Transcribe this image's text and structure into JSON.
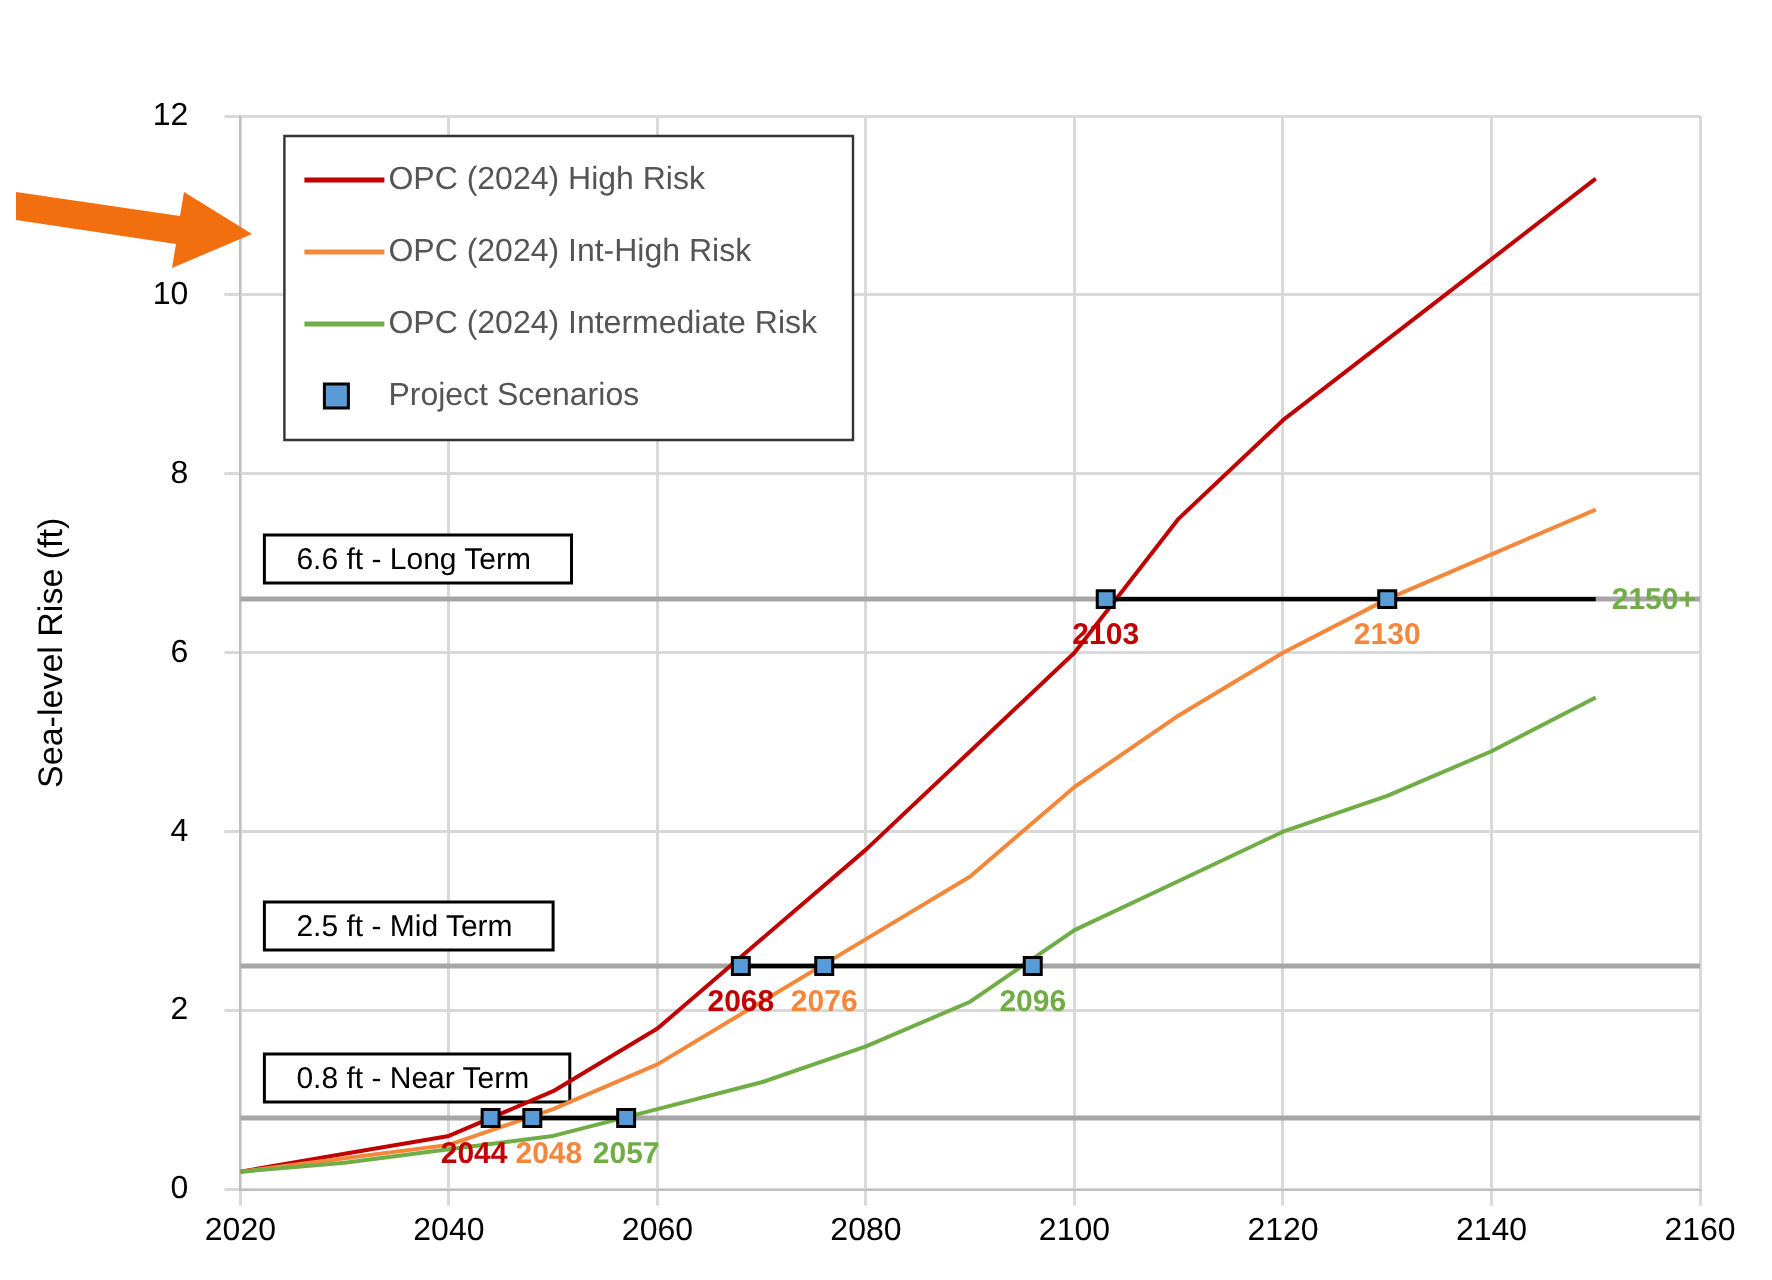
{
  "chart_data": {
    "type": "line",
    "ylabel": "Sea-level Rise (ft)",
    "xlim": [
      2020,
      2160
    ],
    "xticks": [
      2020,
      2040,
      2060,
      2080,
      2100,
      2120,
      2140,
      2160
    ],
    "ylim": [
      0,
      12
    ],
    "yticks": [
      0,
      2,
      4,
      6,
      8,
      10,
      12
    ],
    "grid": true,
    "legend": "top left",
    "series": [
      {
        "name": "OPC (2024) High Risk",
        "color": "#c00000",
        "x": [
          2020,
          2030,
          2040,
          2050,
          2060,
          2070,
          2080,
          2090,
          2100,
          2110,
          2120,
          2130,
          2140,
          2150
        ],
        "values": [
          0.2,
          0.4,
          0.6,
          1.1,
          1.8,
          2.8,
          3.8,
          4.9,
          6.0,
          7.5,
          8.6,
          9.5,
          10.4,
          11.3
        ]
      },
      {
        "name": "OPC (2024) Int-High Risk",
        "color": "#f4873a",
        "x": [
          2020,
          2030,
          2040,
          2050,
          2060,
          2070,
          2080,
          2090,
          2100,
          2110,
          2120,
          2130,
          2140,
          2150
        ],
        "values": [
          0.2,
          0.35,
          0.5,
          0.9,
          1.4,
          2.1,
          2.8,
          3.5,
          4.5,
          5.3,
          6.0,
          6.6,
          7.1,
          7.6
        ]
      },
      {
        "name": "OPC (2024) Intermediate Risk",
        "color": "#70ad47",
        "x": [
          2020,
          2030,
          2040,
          2050,
          2060,
          2070,
          2080,
          2090,
          2100,
          2110,
          2120,
          2130,
          2140,
          2150
        ],
        "values": [
          0.2,
          0.3,
          0.45,
          0.6,
          0.9,
          1.2,
          1.6,
          2.1,
          2.9,
          3.45,
          4.0,
          4.4,
          4.9,
          5.5
        ]
      },
      {
        "color": "#000000",
        "x": [
          2044,
          2057
        ],
        "values": [
          0.8,
          0.8
        ]
      },
      {
        "color": "#000000",
        "x": [
          2068,
          2096
        ],
        "values": [
          2.5,
          2.5
        ]
      },
      {
        "color": "#000000",
        "x": [
          2103,
          2150
        ],
        "values": [
          6.6,
          6.6
        ]
      },
      {
        "name": "Project Scenarios",
        "type": "scatter",
        "marker": "square",
        "color": "#5b9bd5",
        "x": [
          2044,
          2048,
          2057,
          2068,
          2076,
          2096,
          2103,
          2130
        ],
        "values": [
          0.8,
          0.8,
          0.8,
          2.5,
          2.5,
          2.5,
          6.6,
          6.6
        ]
      }
    ],
    "ref_lines": [
      {
        "axis": "y",
        "value": 6.6,
        "label": "6.6 ft - Long Term",
        "color": "#a6a6a6"
      },
      {
        "axis": "y",
        "value": 2.5,
        "label": "2.5 ft - Mid Term",
        "color": "#a6a6a6"
      },
      {
        "axis": "y",
        "value": 0.8,
        "label": "0.8 ft - Near Term",
        "color": "#a6a6a6"
      }
    ],
    "annotations": [
      {
        "text": "2044",
        "x": 2044,
        "y": 0.8
      },
      {
        "text": "2048",
        "x": 2048,
        "y": 0.8
      },
      {
        "text": "2057",
        "x": 2057,
        "y": 0.8
      },
      {
        "text": "2068",
        "x": 2068,
        "y": 2.5
      },
      {
        "text": "2076",
        "x": 2076,
        "y": 2.5
      },
      {
        "text": "2096",
        "x": 2096,
        "y": 2.5
      },
      {
        "text": "2103",
        "x": 2103,
        "y": 6.6
      },
      {
        "text": "2130",
        "x": 2130,
        "y": 6.6
      },
      {
        "text": "2150+",
        "x": 2150,
        "y": 6.6
      }
    ]
  }
}
